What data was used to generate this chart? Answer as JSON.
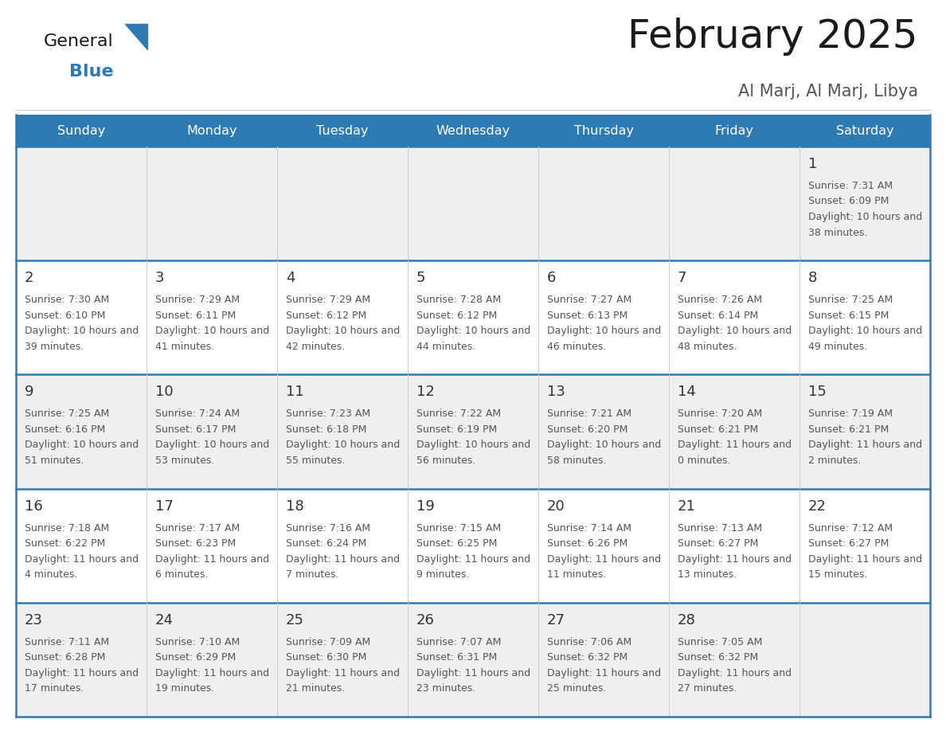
{
  "title": "February 2025",
  "subtitle": "Al Marj, Al Marj, Libya",
  "header_color": "#2E7BB4",
  "header_text_color": "#FFFFFF",
  "day_names": [
    "Sunday",
    "Monday",
    "Tuesday",
    "Wednesday",
    "Thursday",
    "Friday",
    "Saturday"
  ],
  "background_color": "#FFFFFF",
  "row_bg_colors": [
    "#EFEFEF",
    "#FFFFFF",
    "#EFEFEF",
    "#FFFFFF",
    "#EFEFEF"
  ],
  "grid_color": "#AAAAAA",
  "row_border_color": "#2E7BB4",
  "text_color": "#555555",
  "date_color": "#333333",
  "calendar_data": [
    [
      null,
      null,
      null,
      null,
      null,
      null,
      {
        "day": 1,
        "sunrise": "7:31 AM",
        "sunset": "6:09 PM",
        "daylight": "10 hours and 38 minutes."
      }
    ],
    [
      {
        "day": 2,
        "sunrise": "7:30 AM",
        "sunset": "6:10 PM",
        "daylight": "10 hours and 39 minutes."
      },
      {
        "day": 3,
        "sunrise": "7:29 AM",
        "sunset": "6:11 PM",
        "daylight": "10 hours and 41 minutes."
      },
      {
        "day": 4,
        "sunrise": "7:29 AM",
        "sunset": "6:12 PM",
        "daylight": "10 hours and 42 minutes."
      },
      {
        "day": 5,
        "sunrise": "7:28 AM",
        "sunset": "6:12 PM",
        "daylight": "10 hours and 44 minutes."
      },
      {
        "day": 6,
        "sunrise": "7:27 AM",
        "sunset": "6:13 PM",
        "daylight": "10 hours and 46 minutes."
      },
      {
        "day": 7,
        "sunrise": "7:26 AM",
        "sunset": "6:14 PM",
        "daylight": "10 hours and 48 minutes."
      },
      {
        "day": 8,
        "sunrise": "7:25 AM",
        "sunset": "6:15 PM",
        "daylight": "10 hours and 49 minutes."
      }
    ],
    [
      {
        "day": 9,
        "sunrise": "7:25 AM",
        "sunset": "6:16 PM",
        "daylight": "10 hours and 51 minutes."
      },
      {
        "day": 10,
        "sunrise": "7:24 AM",
        "sunset": "6:17 PM",
        "daylight": "10 hours and 53 minutes."
      },
      {
        "day": 11,
        "sunrise": "7:23 AM",
        "sunset": "6:18 PM",
        "daylight": "10 hours and 55 minutes."
      },
      {
        "day": 12,
        "sunrise": "7:22 AM",
        "sunset": "6:19 PM",
        "daylight": "10 hours and 56 minutes."
      },
      {
        "day": 13,
        "sunrise": "7:21 AM",
        "sunset": "6:20 PM",
        "daylight": "10 hours and 58 minutes."
      },
      {
        "day": 14,
        "sunrise": "7:20 AM",
        "sunset": "6:21 PM",
        "daylight": "11 hours and 0 minutes."
      },
      {
        "day": 15,
        "sunrise": "7:19 AM",
        "sunset": "6:21 PM",
        "daylight": "11 hours and 2 minutes."
      }
    ],
    [
      {
        "day": 16,
        "sunrise": "7:18 AM",
        "sunset": "6:22 PM",
        "daylight": "11 hours and 4 minutes."
      },
      {
        "day": 17,
        "sunrise": "7:17 AM",
        "sunset": "6:23 PM",
        "daylight": "11 hours and 6 minutes."
      },
      {
        "day": 18,
        "sunrise": "7:16 AM",
        "sunset": "6:24 PM",
        "daylight": "11 hours and 7 minutes."
      },
      {
        "day": 19,
        "sunrise": "7:15 AM",
        "sunset": "6:25 PM",
        "daylight": "11 hours and 9 minutes."
      },
      {
        "day": 20,
        "sunrise": "7:14 AM",
        "sunset": "6:26 PM",
        "daylight": "11 hours and 11 minutes."
      },
      {
        "day": 21,
        "sunrise": "7:13 AM",
        "sunset": "6:27 PM",
        "daylight": "11 hours and 13 minutes."
      },
      {
        "day": 22,
        "sunrise": "7:12 AM",
        "sunset": "6:27 PM",
        "daylight": "11 hours and 15 minutes."
      }
    ],
    [
      {
        "day": 23,
        "sunrise": "7:11 AM",
        "sunset": "6:28 PM",
        "daylight": "11 hours and 17 minutes."
      },
      {
        "day": 24,
        "sunrise": "7:10 AM",
        "sunset": "6:29 PM",
        "daylight": "11 hours and 19 minutes."
      },
      {
        "day": 25,
        "sunrise": "7:09 AM",
        "sunset": "6:30 PM",
        "daylight": "11 hours and 21 minutes."
      },
      {
        "day": 26,
        "sunrise": "7:07 AM",
        "sunset": "6:31 PM",
        "daylight": "11 hours and 23 minutes."
      },
      {
        "day": 27,
        "sunrise": "7:06 AM",
        "sunset": "6:32 PM",
        "daylight": "11 hours and 25 minutes."
      },
      {
        "day": 28,
        "sunrise": "7:05 AM",
        "sunset": "6:32 PM",
        "daylight": "11 hours and 27 minutes."
      },
      null
    ]
  ],
  "logo_general_color": "#1A1A1A",
  "logo_blue_color": "#2E7BB4",
  "logo_triangle_color": "#2E7BB4",
  "title_fontsize": 36,
  "subtitle_fontsize": 15,
  "header_fontsize": 11.5,
  "day_num_fontsize": 13,
  "cell_text_fontsize": 9
}
